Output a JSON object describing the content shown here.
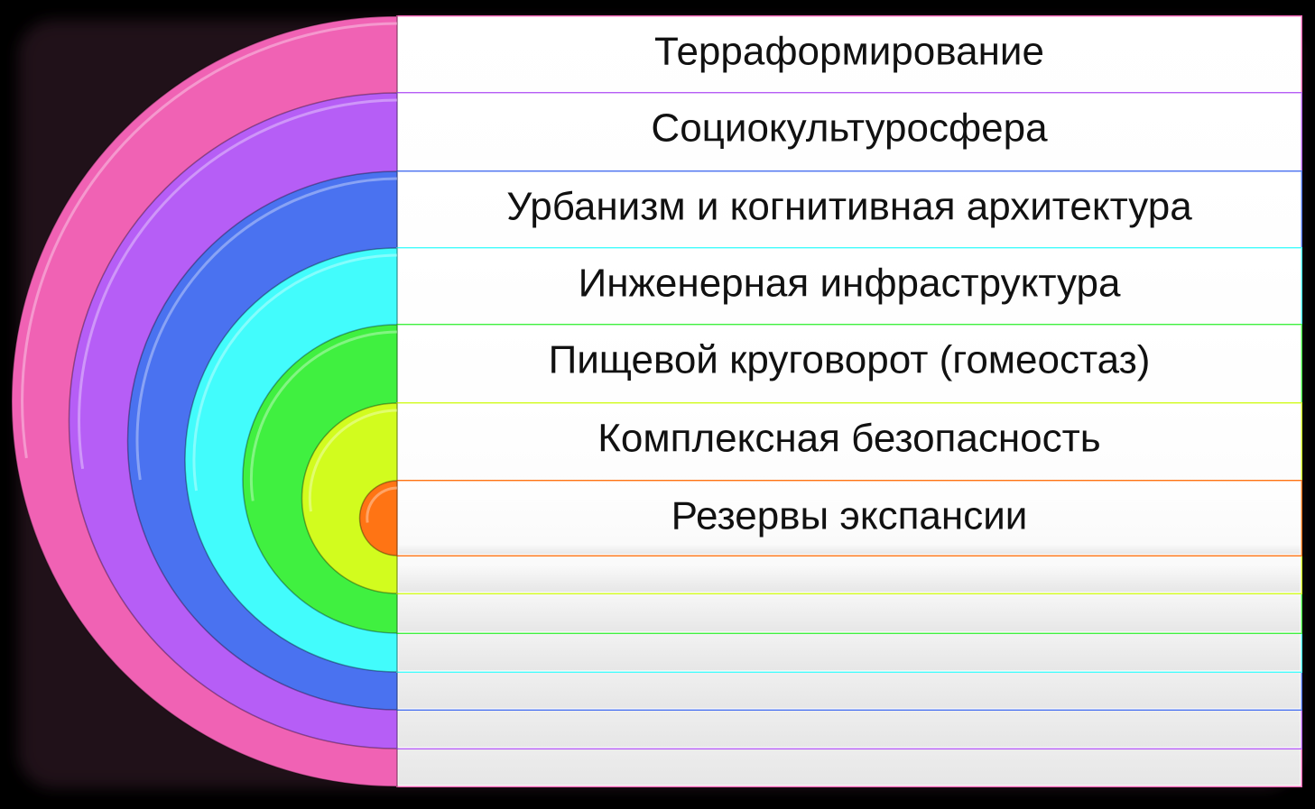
{
  "diagram": {
    "levels": [
      {
        "label": "Терраформирование",
        "color": "#f062b4"
      },
      {
        "label": "Социокультуросфера",
        "color": "#b65ef6"
      },
      {
        "label": "Урбанизм и когнитивная архитектура",
        "color": "#4a72f0"
      },
      {
        "label": "Инженерная инфраструктура",
        "color": "#42fcfc"
      },
      {
        "label": "Пищевой круговорот (гомеостаз)",
        "color": "#40f040"
      },
      {
        "label": "Комплексная безопасность",
        "color": "#d2fc1e"
      },
      {
        "label": "Резервы экспансии",
        "color": "#ff7414"
      }
    ]
  }
}
